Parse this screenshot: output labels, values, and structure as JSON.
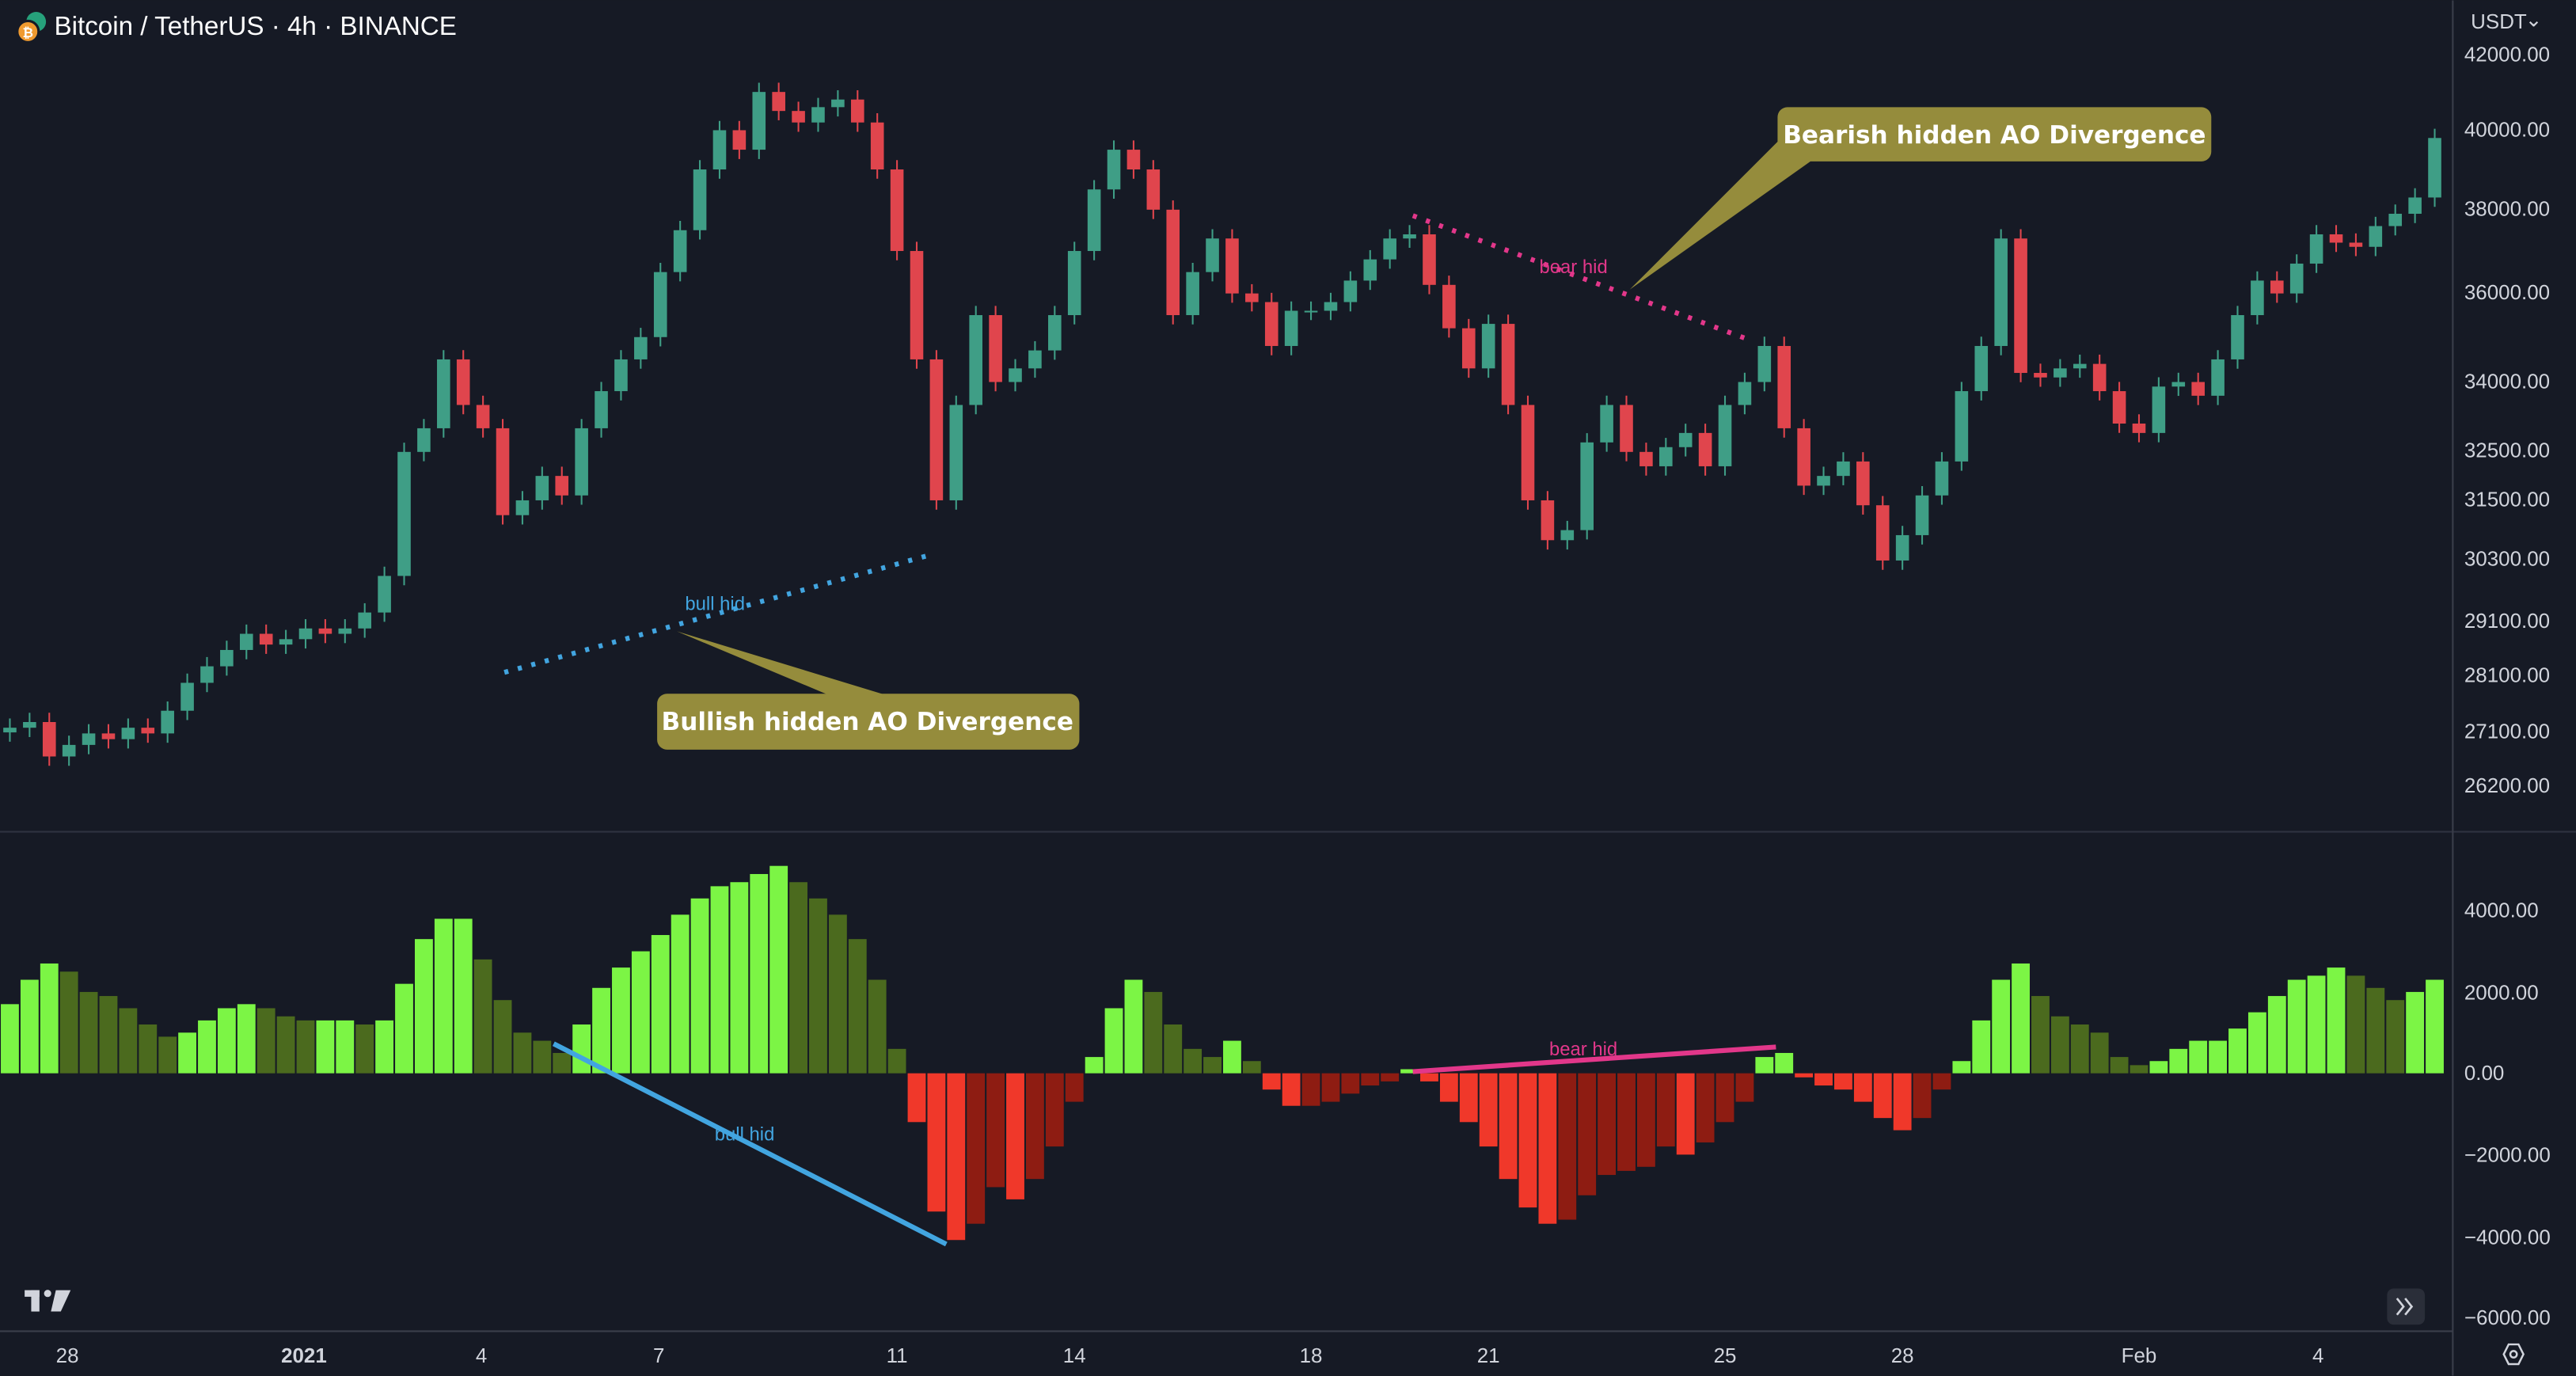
{
  "header": {
    "title": "Bitcoin / TetherUS · 4h · BINANCE",
    "icon": "bitcoin-tether-icon"
  },
  "price_axis": {
    "currency_label": "USDT",
    "ticks": [
      "42000.00",
      "40000.00",
      "38000.00",
      "36000.00",
      "34000.00",
      "32500.00",
      "31500.00",
      "30300.00",
      "29100.00",
      "28100.00",
      "27100.00",
      "26200.00"
    ]
  },
  "ao_axis": {
    "ticks": [
      "4000.00",
      "2000.00",
      "0.00",
      "−2000.00",
      "−4000.00",
      "−6000.00"
    ]
  },
  "time_axis": {
    "ticks": [
      "28",
      "2021",
      "4",
      "7",
      "11",
      "14",
      "18",
      "21",
      "25",
      "28",
      "Feb",
      "4"
    ]
  },
  "annotations": {
    "bearish_callout": "Bearish hidden AO Divergence",
    "bullish_callout": "Bullish hidden AO Divergence",
    "price_bull_label": "bull hid",
    "price_bear_label": "bear hid",
    "ao_bull_label": "bull hid",
    "ao_bear_label": "bear hid"
  },
  "colors": {
    "background": "#161a25",
    "candle_up": "#3f9e86",
    "candle_down": "#e0454d",
    "ao_rising_positive": "#7cf545",
    "ao_falling_positive": "#4b6a1e",
    "ao_falling_negative": "#f0382a",
    "ao_rising_negative": "#8e1c12",
    "bull_divergence": "#42a5e0",
    "bear_divergence": "#e2378a",
    "callout": "#958c3c"
  },
  "chart_data": [
    {
      "type": "candlestick",
      "scale": "log",
      "ylim": [
        26200,
        42000
      ],
      "closes": [
        27200,
        27300,
        26700,
        26900,
        27100,
        27000,
        27200,
        27100,
        27500,
        28000,
        28300,
        28600,
        28900,
        28700,
        28800,
        29000,
        28900,
        29000,
        29300,
        30000,
        32500,
        33000,
        34500,
        33500,
        33000,
        31200,
        31500,
        32000,
        31600,
        33000,
        33800,
        34500,
        35000,
        36500,
        37500,
        39000,
        40000,
        39500,
        41000,
        40500,
        40200,
        40600,
        40800,
        40200,
        39000,
        37000,
        34500,
        31500,
        33500,
        35500,
        34000,
        34300,
        34700,
        35500,
        37000,
        38500,
        39500,
        39000,
        38000,
        35500,
        36500,
        37300,
        36000,
        35800,
        34800,
        35600,
        35600,
        35800,
        36300,
        36800,
        37300,
        37400,
        36200,
        35200,
        34300,
        35300,
        33500,
        31500,
        30700,
        30900,
        32700,
        33500,
        32500,
        32200,
        32600,
        32900,
        32200,
        33500,
        34000,
        34800,
        33000,
        31800,
        32000,
        32300,
        31400,
        30300,
        30800,
        31600,
        32300,
        33800,
        34800,
        37300,
        34200,
        34100,
        34300,
        34400,
        33800,
        33100,
        32900,
        33900,
        34000,
        33700,
        34500,
        35500,
        36300,
        36000,
        36700,
        37400,
        37200,
        37100,
        37600,
        37900,
        38300,
        39800
      ]
    },
    {
      "type": "bar",
      "ylim": [
        -6000,
        5500
      ],
      "values": [
        1700,
        2300,
        2700,
        2500,
        2000,
        1900,
        1600,
        1200,
        900,
        1000,
        1300,
        1600,
        1700,
        1600,
        1400,
        1300,
        1300,
        1300,
        1200,
        1300,
        2200,
        3300,
        3800,
        3800,
        2800,
        1800,
        1000,
        800,
        500,
        1200,
        2100,
        2600,
        3000,
        3400,
        3900,
        4300,
        4600,
        4700,
        4900,
        5100,
        4700,
        4300,
        3900,
        3300,
        2300,
        600,
        -1200,
        -3400,
        -4100,
        -3700,
        -2800,
        -3100,
        -2600,
        -1800,
        -700,
        400,
        1600,
        2300,
        2000,
        1200,
        600,
        400,
        800,
        300,
        -400,
        -800,
        -800,
        -700,
        -500,
        -300,
        -200,
        100,
        -200,
        -700,
        -1200,
        -1800,
        -2600,
        -3300,
        -3700,
        -3600,
        -3000,
        -2500,
        -2400,
        -2300,
        -1800,
        -2000,
        -1700,
        -1200,
        -700,
        400,
        500,
        -100,
        -300,
        -400,
        -700,
        -1100,
        -1400,
        -1100,
        -400,
        300,
        1300,
        2300,
        2700,
        1900,
        1400,
        1200,
        1000,
        400,
        200,
        300,
        600,
        800,
        800,
        1100,
        1500,
        1900,
        2300,
        2400,
        2600,
        2400,
        2100,
        1800,
        2000,
        2300
      ]
    }
  ]
}
